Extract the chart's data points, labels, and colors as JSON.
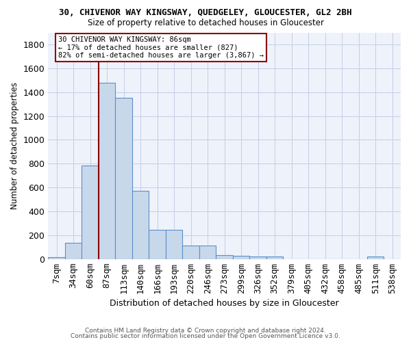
{
  "title": "30, CHIVENOR WAY KINGSWAY, QUEDGELEY, GLOUCESTER, GL2 2BH",
  "subtitle": "Size of property relative to detached houses in Gloucester",
  "xlabel": "Distribution of detached houses by size in Gloucester",
  "ylabel": "Number of detached properties",
  "bar_color": "#c8d8eb",
  "bar_edge_color": "#5b8fc9",
  "background_color": "#eef2fa",
  "grid_color": "#c5cde8",
  "categories": [
    "7sqm",
    "34sqm",
    "60sqm",
    "87sqm",
    "113sqm",
    "140sqm",
    "166sqm",
    "193sqm",
    "220sqm",
    "246sqm",
    "273sqm",
    "299sqm",
    "326sqm",
    "352sqm",
    "379sqm",
    "405sqm",
    "432sqm",
    "458sqm",
    "485sqm",
    "511sqm",
    "538sqm"
  ],
  "values": [
    15,
    135,
    785,
    1480,
    1355,
    570,
    245,
    245,
    112,
    112,
    35,
    30,
    20,
    20,
    0,
    0,
    0,
    0,
    0,
    20,
    0
  ],
  "ylim": [
    0,
    1900
  ],
  "yticks": [
    0,
    200,
    400,
    600,
    800,
    1000,
    1200,
    1400,
    1600,
    1800
  ],
  "red_line_index": 3,
  "annotation_line1": "30 CHIVENOR WAY KINGSWAY: 86sqm",
  "annotation_line2": "← 17% of detached houses are smaller (827)",
  "annotation_line3": "82% of semi-detached houses are larger (3,867) →",
  "footer_line1": "Contains HM Land Registry data © Crown copyright and database right 2024.",
  "footer_line2": "Contains public sector information licensed under the Open Government Licence v3.0."
}
